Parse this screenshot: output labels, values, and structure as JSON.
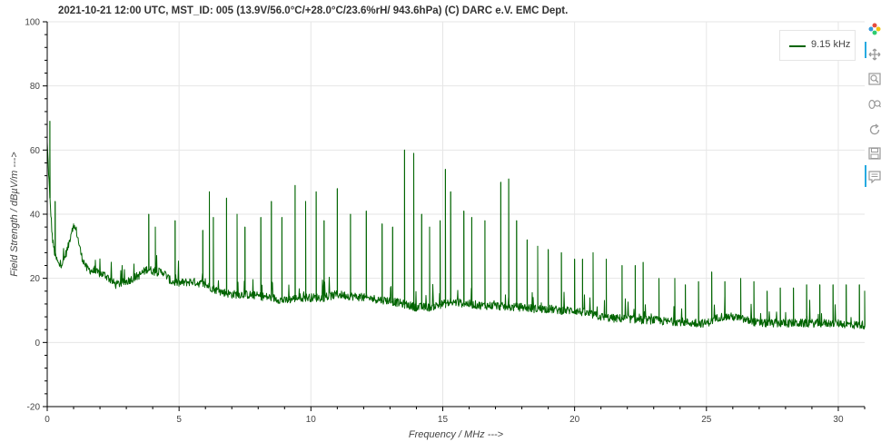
{
  "title": "2021-10-21 12:00  UTC,  MST_ID:  005   (13.9V/56.0°C/+28.0°C/23.6%rH/ 943.6hPa)   (C) DARC e.V. EMC Dept.",
  "legend": {
    "label": "9.15 kHz",
    "color": "#006400"
  },
  "toolbar": [
    {
      "name": "bokeh-logo-icon"
    },
    {
      "name": "pan-icon",
      "active": true
    },
    {
      "name": "box-zoom-icon"
    },
    {
      "name": "wheel-zoom-icon"
    },
    {
      "name": "reset-icon"
    },
    {
      "name": "save-icon"
    },
    {
      "name": "hover-icon",
      "active": true
    }
  ],
  "chart_data": {
    "type": "line",
    "xlabel": "Frequency / MHz --->",
    "ylabel": "Field Strength / dBµV/m --->",
    "xlim": [
      0,
      31
    ],
    "ylim": [
      -20,
      100
    ],
    "xticks": [
      "0",
      "5",
      "10",
      "15",
      "20",
      "25",
      "30"
    ],
    "yticks": [
      "-20",
      "0",
      "20",
      "40",
      "60",
      "80",
      "100"
    ],
    "grid": true,
    "legend_position": "top-right",
    "series": [
      {
        "name": "9.15 kHz",
        "color": "#006400",
        "baseline": [
          [
            0,
            62
          ],
          [
            0.1,
            45
          ],
          [
            0.2,
            32
          ],
          [
            0.3,
            27
          ],
          [
            0.45,
            24
          ],
          [
            0.6,
            25
          ],
          [
            0.8,
            30
          ],
          [
            0.95,
            36
          ],
          [
            1.1,
            35
          ],
          [
            1.3,
            27
          ],
          [
            1.5,
            23
          ],
          [
            1.8,
            22
          ],
          [
            2.2,
            21
          ],
          [
            2.6,
            18
          ],
          [
            3.0,
            19
          ],
          [
            3.5,
            21
          ],
          [
            3.8,
            23
          ],
          [
            4.1,
            22
          ],
          [
            4.4,
            22
          ],
          [
            4.7,
            19
          ],
          [
            5.0,
            18.5
          ],
          [
            5.5,
            19
          ],
          [
            6.0,
            18
          ],
          [
            6.5,
            16
          ],
          [
            7,
            15
          ],
          [
            7.5,
            15
          ],
          [
            8,
            14.5
          ],
          [
            8.5,
            14
          ],
          [
            9,
            13
          ],
          [
            9.5,
            14
          ],
          [
            10,
            14
          ],
          [
            10.5,
            14
          ],
          [
            11,
            15
          ],
          [
            11.5,
            14.5
          ],
          [
            12,
            14
          ],
          [
            12.5,
            13.5
          ],
          [
            13,
            13
          ],
          [
            13.5,
            12
          ],
          [
            14,
            11
          ],
          [
            14.5,
            11
          ],
          [
            15,
            12
          ],
          [
            15.5,
            12.5
          ],
          [
            16,
            12
          ],
          [
            16.5,
            11.5
          ],
          [
            17,
            11.5
          ],
          [
            17.5,
            11
          ],
          [
            18,
            11
          ],
          [
            18.5,
            10.5
          ],
          [
            19,
            10.5
          ],
          [
            19.5,
            10
          ],
          [
            20,
            10
          ],
          [
            20.5,
            9
          ],
          [
            21,
            8
          ],
          [
            21.5,
            7.5
          ],
          [
            22,
            7.5
          ],
          [
            22.5,
            7
          ],
          [
            23,
            7
          ],
          [
            23.5,
            6.5
          ],
          [
            24,
            6.5
          ],
          [
            24.5,
            6
          ],
          [
            25,
            6
          ],
          [
            25.5,
            8
          ],
          [
            26,
            8
          ],
          [
            26.5,
            7
          ],
          [
            27,
            6
          ],
          [
            27.5,
            6
          ],
          [
            28,
            6
          ],
          [
            28.5,
            6
          ],
          [
            29,
            6
          ],
          [
            29.5,
            6
          ],
          [
            30,
            6
          ],
          [
            30.5,
            5.5
          ],
          [
            31,
            5.5
          ]
        ],
        "peaks": [
          [
            0.1,
            69
          ],
          [
            0.3,
            44
          ],
          [
            1.0,
            37
          ],
          [
            3.85,
            40
          ],
          [
            4.1,
            36
          ],
          [
            4.85,
            38
          ],
          [
            5.9,
            35
          ],
          [
            6.15,
            47
          ],
          [
            6.3,
            39
          ],
          [
            6.8,
            45
          ],
          [
            7.2,
            40
          ],
          [
            7.5,
            36
          ],
          [
            8.1,
            39
          ],
          [
            8.5,
            44
          ],
          [
            8.9,
            39
          ],
          [
            9.4,
            49
          ],
          [
            9.8,
            44
          ],
          [
            10.2,
            47
          ],
          [
            10.5,
            38
          ],
          [
            11.0,
            48
          ],
          [
            11.5,
            40
          ],
          [
            12.1,
            41
          ],
          [
            12.7,
            37
          ],
          [
            13.1,
            36
          ],
          [
            13.55,
            60
          ],
          [
            13.9,
            59
          ],
          [
            14.2,
            40
          ],
          [
            14.5,
            36
          ],
          [
            14.9,
            38
          ],
          [
            15.1,
            54
          ],
          [
            15.3,
            47
          ],
          [
            15.8,
            41
          ],
          [
            16.1,
            39
          ],
          [
            16.6,
            38
          ],
          [
            17.2,
            50
          ],
          [
            17.5,
            51
          ],
          [
            17.8,
            38
          ],
          [
            18.2,
            32
          ],
          [
            18.6,
            30
          ],
          [
            19.0,
            29
          ],
          [
            19.5,
            28
          ],
          [
            20.0,
            26
          ],
          [
            20.3,
            26
          ],
          [
            20.7,
            28
          ],
          [
            21.2,
            26
          ],
          [
            21.8,
            24
          ],
          [
            22.3,
            24
          ],
          [
            22.6,
            25
          ],
          [
            23.2,
            20
          ],
          [
            23.8,
            20
          ],
          [
            24.2,
            18
          ],
          [
            24.7,
            19
          ],
          [
            25.2,
            22
          ],
          [
            25.7,
            19
          ],
          [
            26.3,
            20
          ],
          [
            26.8,
            19
          ],
          [
            27.3,
            16
          ],
          [
            27.8,
            17
          ],
          [
            28.3,
            17
          ],
          [
            28.8,
            18
          ],
          [
            29.3,
            18
          ],
          [
            29.8,
            18
          ],
          [
            30.3,
            18
          ],
          [
            30.8,
            18
          ],
          [
            31.0,
            16
          ]
        ]
      }
    ]
  }
}
